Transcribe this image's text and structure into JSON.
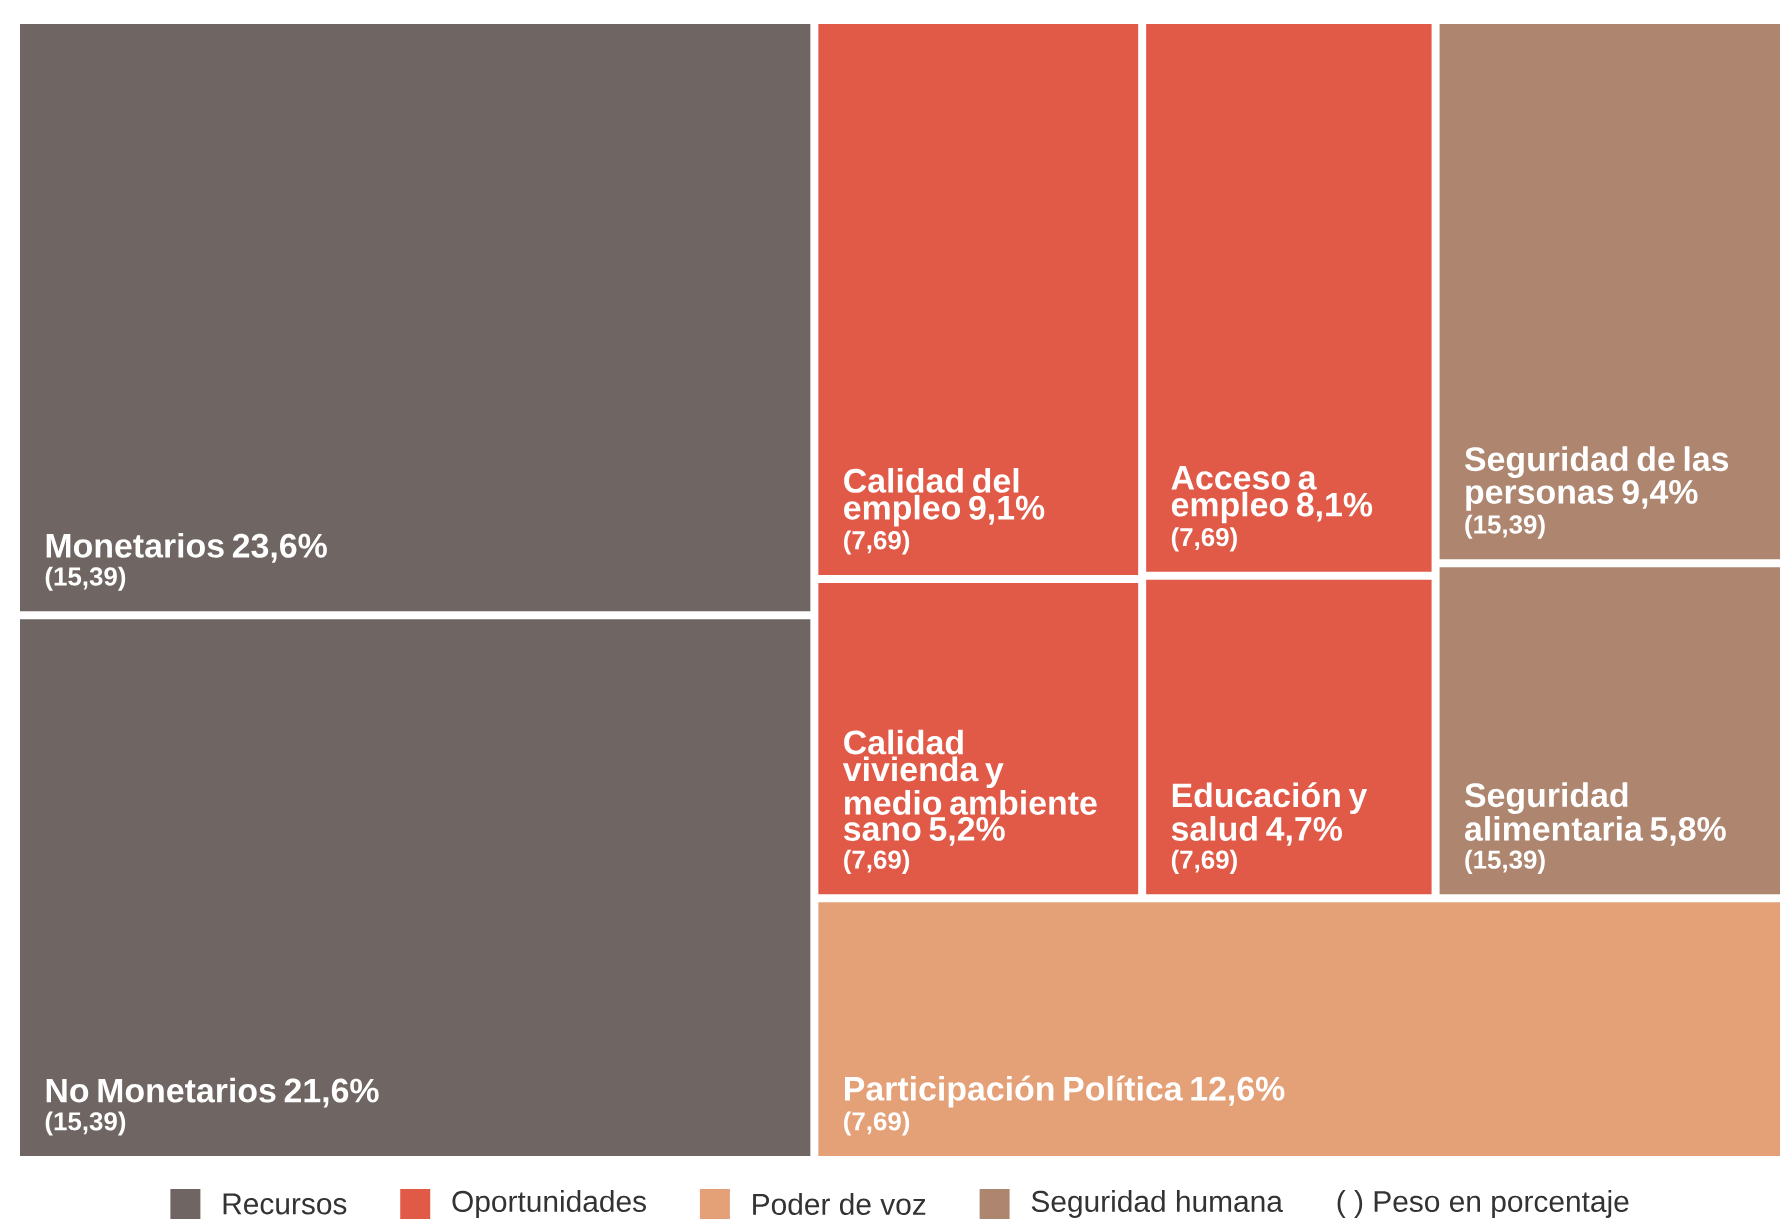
{
  "chart_data": {
    "type": "other",
    "categories": [
      "Monetarios",
      "No Monetarios",
      "Calidad del empleo",
      "Calidad vivienda y medio ambiente sano",
      "Acceso a empleo",
      "Educación y salud",
      "Seguridad de las personas",
      "Seguridad alimentaria",
      "Participación Política"
    ],
    "series": [
      {
        "name": "Recursos",
        "color": "#6f6663",
        "values": [
          23.6,
          21.6,
          null,
          null,
          null,
          null,
          null,
          null,
          null
        ],
        "value_labels": [
          "23,6%",
          "21,6%",
          null,
          null,
          null,
          null,
          null,
          null,
          null
        ]
      },
      {
        "name": "Oportunidades",
        "color": "#e05a47",
        "values": [
          null,
          null,
          9.1,
          5.2,
          8.1,
          4.7,
          null,
          null,
          null
        ],
        "value_labels": [
          null,
          null,
          "9,1%",
          "5,2%",
          "8,1%",
          "4,7%",
          null,
          null,
          null
        ]
      },
      {
        "name": "Poder de voz",
        "color": "#e4a077",
        "values": [
          null,
          null,
          null,
          null,
          null,
          null,
          null,
          null,
          12.6
        ],
        "value_labels": [
          null,
          null,
          null,
          null,
          null,
          null,
          null,
          null,
          "12,6%"
        ]
      },
      {
        "name": "Seguridad humana",
        "color": "#ae8670",
        "values": [
          null,
          null,
          null,
          null,
          null,
          null,
          9.4,
          5.8,
          null
        ],
        "value_labels": [
          null,
          null,
          null,
          null,
          null,
          null,
          "9,4%",
          "5,8%",
          null
        ]
      }
    ],
    "annotations": [
      "(15,39)",
      "(15,39)",
      "(7,69)",
      "(7,69)",
      "(7,69)",
      "(7,69)",
      "(15,39)",
      "(15,39)",
      "(7,69)",
      "( ) Peso en porcentaje"
    ],
    "legend": "bottom"
  }
}
